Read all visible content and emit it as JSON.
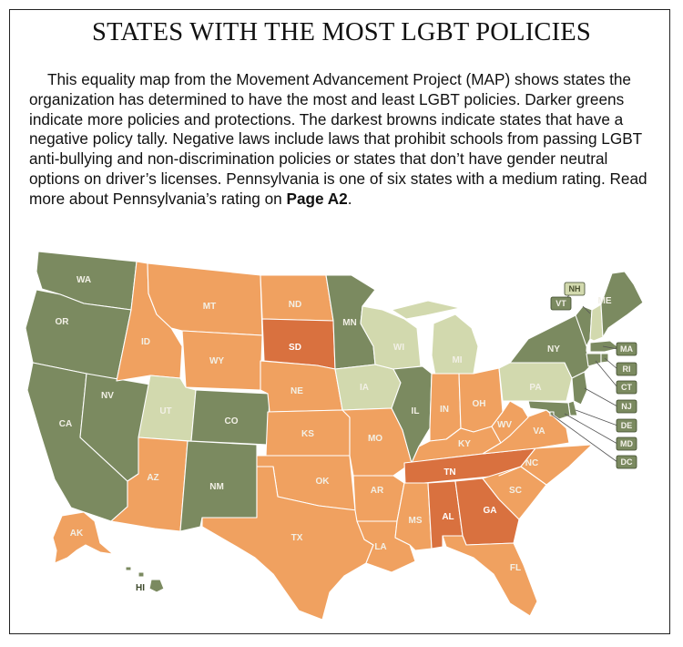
{
  "title": "STATES WITH THE MOST LGBT POLICIES",
  "description": {
    "text": "This equality map from the Movement Advancement Project (MAP) shows states the organization has determined to have the most and least LGBT policies. Darker greens indicate more policies and protections. The darkest browns indicate states that have a negative policy tally. Negative laws include laws that prohibit schools from passing LGBT anti-bullying and non-discrimination policies or states that don’t have gender neutral options on driver’s licenses. Pennsylvania is one of six states with a medium rating. Read more about Pennsylvania’s rating on ",
    "bold_ref": "Page A2",
    "end": "."
  },
  "colors": {
    "high": "#7b8a60",
    "medium": "#d2d9ae",
    "low": "#f0a160",
    "negative": "#d9713f",
    "border": "#ffffff"
  },
  "states": {
    "WA": {
      "label": "WA",
      "rating": "high"
    },
    "OR": {
      "label": "OR",
      "rating": "high"
    },
    "CA": {
      "label": "CA",
      "rating": "high"
    },
    "NV": {
      "label": "NV",
      "rating": "high"
    },
    "ID": {
      "label": "ID",
      "rating": "low"
    },
    "MT": {
      "label": "MT",
      "rating": "low"
    },
    "WY": {
      "label": "WY",
      "rating": "low"
    },
    "UT": {
      "label": "UT",
      "rating": "medium"
    },
    "CO": {
      "label": "CO",
      "rating": "high"
    },
    "AZ": {
      "label": "AZ",
      "rating": "low"
    },
    "NM": {
      "label": "NM",
      "rating": "high"
    },
    "ND": {
      "label": "ND",
      "rating": "low"
    },
    "SD": {
      "label": "SD",
      "rating": "negative"
    },
    "NE": {
      "label": "NE",
      "rating": "low"
    },
    "KS": {
      "label": "KS",
      "rating": "low"
    },
    "OK": {
      "label": "OK",
      "rating": "low"
    },
    "TX": {
      "label": "TX",
      "rating": "low"
    },
    "MN": {
      "label": "MN",
      "rating": "high"
    },
    "IA": {
      "label": "IA",
      "rating": "medium"
    },
    "MO": {
      "label": "MO",
      "rating": "low"
    },
    "AR": {
      "label": "AR",
      "rating": "low"
    },
    "LA": {
      "label": "LA",
      "rating": "low"
    },
    "WI": {
      "label": "WI",
      "rating": "medium"
    },
    "IL": {
      "label": "IL",
      "rating": "high"
    },
    "MI": {
      "label": "MI",
      "rating": "medium"
    },
    "IN": {
      "label": "IN",
      "rating": "low"
    },
    "OH": {
      "label": "OH",
      "rating": "low"
    },
    "KY": {
      "label": "KY",
      "rating": "low"
    },
    "TN": {
      "label": "TN",
      "rating": "negative"
    },
    "MS": {
      "label": "MS",
      "rating": "low"
    },
    "AL": {
      "label": "AL",
      "rating": "negative"
    },
    "GA": {
      "label": "GA",
      "rating": "negative"
    },
    "FL": {
      "label": "FL",
      "rating": "low"
    },
    "SC": {
      "label": "SC",
      "rating": "low"
    },
    "NC": {
      "label": "NC",
      "rating": "low"
    },
    "VA": {
      "label": "VA",
      "rating": "low"
    },
    "WV": {
      "label": "WV",
      "rating": "low"
    },
    "PA": {
      "label": "PA",
      "rating": "medium"
    },
    "NY": {
      "label": "NY",
      "rating": "high"
    },
    "VT": {
      "label": "VT",
      "rating": "high"
    },
    "NH": {
      "label": "NH",
      "rating": "medium"
    },
    "ME": {
      "label": "ME",
      "rating": "high"
    },
    "MA": {
      "label": "MA",
      "rating": "high"
    },
    "RI": {
      "label": "RI",
      "rating": "high"
    },
    "CT": {
      "label": "CT",
      "rating": "high"
    },
    "NJ": {
      "label": "NJ",
      "rating": "high"
    },
    "DE": {
      "label": "DE",
      "rating": "high"
    },
    "MD": {
      "label": "MD",
      "rating": "high"
    },
    "DC": {
      "label": "DC",
      "rating": "high"
    },
    "AK": {
      "label": "AK",
      "rating": "low"
    },
    "HI": {
      "label": "HI",
      "rating": "high"
    }
  }
}
